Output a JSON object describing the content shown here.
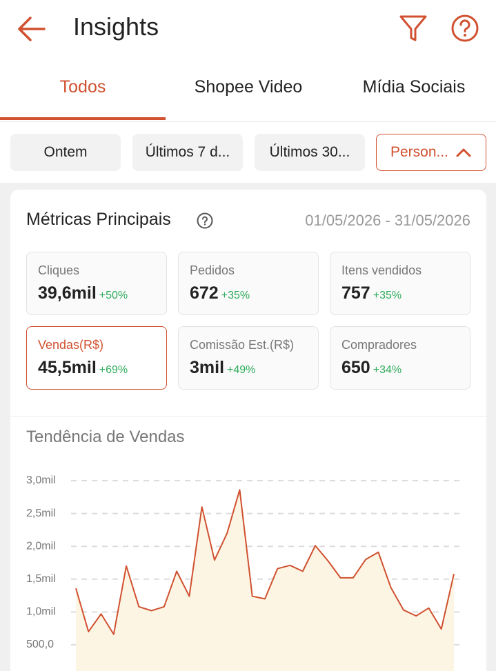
{
  "header": {
    "title": "Insights"
  },
  "tabs": [
    "Todos",
    "Shopee Video",
    "Mídia Sociais"
  ],
  "filters": [
    "Ontem",
    "Últimos 7 d...",
    "Últimos 30...",
    "Person..."
  ],
  "metrics": {
    "title": "Métricas Principais",
    "date_range": "01/05/2026 - 31/05/2026",
    "cards": [
      {
        "label": "Cliques",
        "value": "39,6mil",
        "change": "+50%"
      },
      {
        "label": "Pedidos",
        "value": "672",
        "change": "+35%"
      },
      {
        "label": "Itens vendidos",
        "value": "757",
        "change": "+35%"
      },
      {
        "label": "Vendas(R$)",
        "value": "45,5mil",
        "change": "+69%"
      },
      {
        "label": "Comissão Est.(R$)",
        "value": "3mil",
        "change": "+49%"
      },
      {
        "label": "Compradores",
        "value": "650",
        "change": "+34%"
      }
    ]
  },
  "chart_data": {
    "type": "line",
    "title": "Tendência de Vendas",
    "categories": [
      null,
      null,
      null,
      null,
      null,
      null,
      null,
      null,
      null,
      null,
      null,
      null,
      null,
      null,
      null,
      null,
      null,
      null,
      null,
      null,
      null,
      null,
      null,
      null,
      null,
      null,
      null,
      null,
      null,
      null,
      null
    ],
    "values": [
      1360,
      700,
      970,
      660,
      1700,
      1080,
      1020,
      1080,
      1620,
      1240,
      2600,
      1790,
      2200,
      2860,
      1240,
      1200,
      1660,
      1710,
      1620,
      2010,
      1780,
      1520,
      1520,
      1800,
      1910,
      1370,
      1030,
      940,
      1060,
      740,
      1580
    ],
    "color": "#d0502f",
    "ylim": [
      0,
      3000
    ],
    "yticks": [
      {
        "value": 500,
        "label": "500,0"
      },
      {
        "value": 1000,
        "label": "1,0mil"
      },
      {
        "value": 1500,
        "label": "1,5mil"
      },
      {
        "value": 2000,
        "label": "2,0mil"
      },
      {
        "value": 2500,
        "label": "2,5mil"
      },
      {
        "value": 3000,
        "label": "3,0mil"
      }
    ],
    "grid": true
  }
}
